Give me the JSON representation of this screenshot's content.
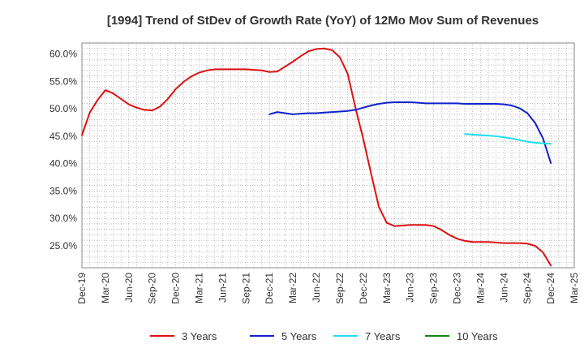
{
  "chart_data": {
    "type": "line",
    "title": "[1994]  Trend of StDev of Growth Rate (YoY) of 12Mo Mov Sum of Revenues",
    "xlabel": "",
    "ylabel": "",
    "ylim": [
      21.0,
      62.0
    ],
    "y_ticks": [
      25.0,
      30.0,
      35.0,
      40.0,
      45.0,
      50.0,
      55.0,
      60.0
    ],
    "y_tick_labels": [
      "25.0%",
      "30.0%",
      "35.0%",
      "40.0%",
      "45.0%",
      "50.0%",
      "55.0%",
      "60.0%"
    ],
    "x_tick_labels": [
      "Dec-19",
      "Mar-20",
      "Jun-20",
      "Sep-20",
      "Dec-20",
      "Mar-21",
      "Jun-21",
      "Sep-21",
      "Dec-21",
      "Mar-22",
      "Jun-22",
      "Sep-22",
      "Dec-22",
      "Mar-23",
      "Jun-23",
      "Sep-23",
      "Dec-23",
      "Mar-24",
      "Jun-24",
      "Sep-24",
      "Dec-24",
      "Mar-25"
    ],
    "x_range_months": [
      0,
      63
    ],
    "grid": true,
    "legend_position": "bottom",
    "series": [
      {
        "name": "3 Years",
        "color": "#dd1111",
        "x": [
          0,
          1,
          2,
          3,
          4,
          5,
          6,
          7,
          8,
          9,
          10,
          11,
          12,
          13,
          14,
          15,
          16,
          17,
          18,
          19,
          20,
          21,
          22,
          23,
          24,
          25,
          26,
          27,
          28,
          29,
          30,
          31,
          32,
          33,
          34,
          35,
          36,
          37,
          38,
          39,
          40,
          41,
          42,
          43,
          44,
          45,
          46,
          47,
          48,
          49,
          50,
          51,
          52,
          53,
          54,
          55,
          56,
          57,
          58,
          59,
          60
        ],
        "values": [
          45.2,
          49.3,
          51.6,
          53.4,
          52.8,
          51.8,
          50.8,
          50.2,
          49.8,
          49.7,
          50.4,
          51.8,
          53.6,
          54.9,
          55.9,
          56.6,
          57.0,
          57.2,
          57.2,
          57.2,
          57.2,
          57.2,
          57.1,
          57.0,
          56.7,
          56.8,
          57.7,
          58.6,
          59.6,
          60.5,
          60.9,
          61.0,
          60.7,
          59.4,
          56.4,
          50.2,
          44.5,
          38.2,
          32.1,
          29.2,
          28.6,
          28.7,
          28.8,
          28.8,
          28.8,
          28.6,
          27.9,
          27.0,
          26.3,
          25.9,
          25.7,
          25.7,
          25.7,
          25.6,
          25.5,
          25.5,
          25.5,
          25.4,
          25.0,
          23.8,
          21.4
        ]
      },
      {
        "name": "5 Years",
        "color": "#1122cc",
        "x": [
          24,
          25,
          26,
          27,
          28,
          29,
          30,
          31,
          32,
          33,
          34,
          35,
          36,
          37,
          38,
          39,
          40,
          41,
          42,
          43,
          44,
          45,
          46,
          47,
          48,
          49,
          50,
          51,
          52,
          53,
          54,
          55,
          56,
          57,
          58,
          59,
          60
        ],
        "values": [
          49.0,
          49.4,
          49.2,
          49.0,
          49.1,
          49.2,
          49.2,
          49.3,
          49.4,
          49.5,
          49.6,
          49.8,
          50.2,
          50.6,
          50.9,
          51.1,
          51.2,
          51.2,
          51.2,
          51.1,
          51.0,
          51.0,
          51.0,
          51.0,
          51.0,
          50.9,
          50.9,
          50.9,
          50.9,
          50.9,
          50.8,
          50.6,
          50.1,
          49.2,
          47.4,
          44.6,
          40.1
        ]
      },
      {
        "name": "7 Years",
        "color": "#22ddee",
        "x": [
          49,
          50,
          51,
          52,
          53,
          54,
          55,
          56,
          57,
          58,
          59,
          60
        ],
        "values": [
          45.4,
          45.3,
          45.2,
          45.1,
          45.0,
          44.8,
          44.6,
          44.3,
          44.0,
          43.8,
          43.7,
          43.6
        ]
      },
      {
        "name": "10 Years",
        "color": "#118811",
        "x": [],
        "values": []
      }
    ]
  }
}
